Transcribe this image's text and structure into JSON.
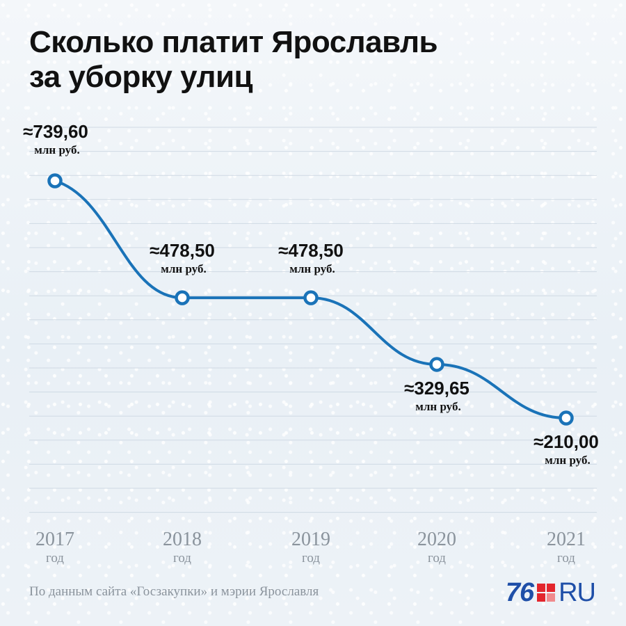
{
  "title_line1": "Сколько платит Ярославль",
  "title_line2": "за уборку улиц",
  "source": "По данным сайта «Госзакупки» и мэрии Ярославля",
  "logo": {
    "number": "76",
    "suffix": "RU"
  },
  "colors": {
    "line": "#1a73b8",
    "logo_red": "#e3262d",
    "logo_blue": "#1f4fa8"
  },
  "chart_data": {
    "type": "line",
    "categories": [
      "2017",
      "2018",
      "2019",
      "2020",
      "2021"
    ],
    "category_sublabel": "год",
    "values": [
      739.6,
      478.5,
      478.5,
      329.65,
      210.0
    ],
    "value_labels": [
      "≈739,60",
      "≈478,50",
      "≈478,50",
      "≈329,65",
      "≈210,00"
    ],
    "unit_label": "млн руб.",
    "grid": true
  }
}
